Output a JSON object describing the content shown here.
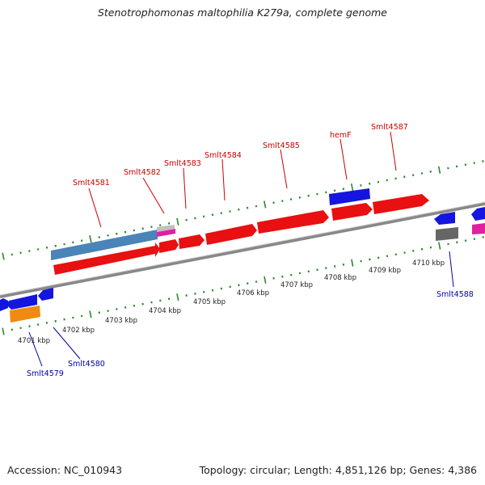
{
  "title": "Stenotrophomonas maltophilia K279a, complete genome",
  "footer": {
    "accession": "Accession: NC_010943",
    "summary": "Topology: circular; Length: 4,851,126 bp; Genes: 4,386"
  },
  "colors": {
    "cds_forward": "#e81010",
    "cds_blue": "#1515e0",
    "cds_steelblue": "#4a84b8",
    "pseudo_orange": "#f08a10",
    "pseudo_gray": "#666666",
    "magenta": "#e020a0",
    "backbone": "#888888",
    "tick_green": "#2a8a2a",
    "label_top": "#cc0000",
    "label_bottom": "#0000aa"
  },
  "scale_labels": [
    "4701 kbp",
    "4702 kbp",
    "4703 kbp",
    "4704 kbp",
    "4705 kbp",
    "4706 kbp",
    "4707 kbp",
    "4708 kbp",
    "4709 kbp",
    "4710 kbp"
  ],
  "gene_labels_top": [
    "Smlt4581",
    "Smlt4582",
    "Smlt4583",
    "Smlt4584",
    "Smlt4585",
    "hemF",
    "Smlt4587"
  ],
  "gene_labels_bottom": [
    "Smlt4579",
    "Smlt4580",
    "Smlt4588"
  ]
}
